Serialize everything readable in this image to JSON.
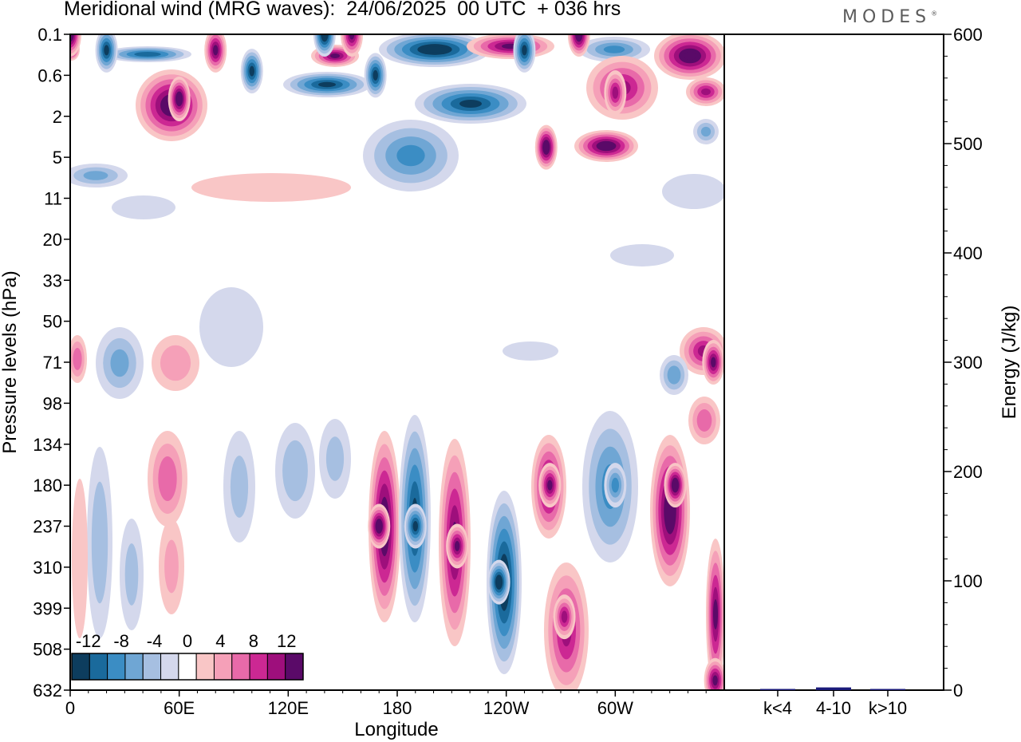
{
  "header": {
    "title": "Meridional wind (MRG waves):  24/06/2025  00 UTC  + 036 hrs",
    "logo_text": "MODES"
  },
  "chart_data": [
    {
      "type": "heatmap",
      "title": "Meridional wind (MRG waves):  24/06/2025  00 UTC  + 036 hrs",
      "xlabel": "Longitude",
      "ylabel": "Pressure levels (hPa)",
      "x_ticks": [
        "0",
        "60E",
        "120E",
        "180",
        "120W",
        "60W"
      ],
      "x_tick_degrees": [
        0,
        60,
        120,
        180,
        240,
        300
      ],
      "xlim": [
        0,
        360
      ],
      "y_ticks": [
        "0.1",
        "0.6",
        "2",
        "5",
        "11",
        "20",
        "33",
        "50",
        "71",
        "98",
        "134",
        "180",
        "237",
        "310",
        "399",
        "508",
        "632"
      ],
      "colorbar": {
        "labels": [
          "-12",
          "-8",
          "-4",
          "0",
          "4",
          "8",
          "12"
        ],
        "levels": [
          -14,
          -12,
          -10,
          -8,
          -6,
          -4,
          -2,
          2,
          4,
          6,
          8,
          10,
          12,
          14
        ],
        "colors": [
          "#0d3d5e",
          "#1a6a9c",
          "#3b8dc4",
          "#6fa6d4",
          "#a6bfe1",
          "#d4d8ec",
          "#ffffff",
          "#f9c6c6",
          "#f5a0b8",
          "#e86aa9",
          "#cc2893",
          "#9e0f7c",
          "#5a0a68"
        ]
      },
      "grid": false,
      "features": [
        {
          "lon": 0,
          "level": "0.1",
          "value": 14
        },
        {
          "lon": 20,
          "level": "0.2",
          "value": -12
        },
        {
          "lon": 60,
          "level": "1.2",
          "value": 14
        },
        {
          "lon": 80,
          "level": "0.2",
          "value": 12
        },
        {
          "lon": 100,
          "level": "0.5",
          "value": -12
        },
        {
          "lon": 140,
          "level": "0.1",
          "value": -14
        },
        {
          "lon": 155,
          "level": "0.1",
          "value": 12
        },
        {
          "lon": 168,
          "level": "0.6",
          "value": -12
        },
        {
          "lon": 250,
          "level": "0.2",
          "value": -12
        },
        {
          "lon": 280,
          "level": "0.1",
          "value": 14
        },
        {
          "lon": 262,
          "level": "4",
          "value": 14
        },
        {
          "lon": 300,
          "level": "1",
          "value": 10
        },
        {
          "lon": 170,
          "level": "237",
          "value": 14
        },
        {
          "lon": 190,
          "level": "237",
          "value": -12
        },
        {
          "lon": 213,
          "level": "270",
          "value": 12
        },
        {
          "lon": 236,
          "level": "340",
          "value": -14
        },
        {
          "lon": 264,
          "level": "180",
          "value": 12
        },
        {
          "lon": 272,
          "level": "420",
          "value": 10
        },
        {
          "lon": 300,
          "level": "180",
          "value": -8
        },
        {
          "lon": 333,
          "level": "180",
          "value": 14
        },
        {
          "lon": 354,
          "level": "71",
          "value": 12
        },
        {
          "lon": 355,
          "level": "600",
          "value": 12
        }
      ]
    },
    {
      "type": "bar",
      "categories": [
        "k<4",
        "4-10",
        "k>10"
      ],
      "values": [
        0.3,
        2.5,
        0.2
      ],
      "ylabel": "Energy (J/kg)",
      "ylim": [
        0,
        600
      ],
      "y_ticks": [
        "0",
        "100",
        "200",
        "300",
        "400",
        "500",
        "600"
      ],
      "bar_color": "#1a1a7a"
    }
  ]
}
